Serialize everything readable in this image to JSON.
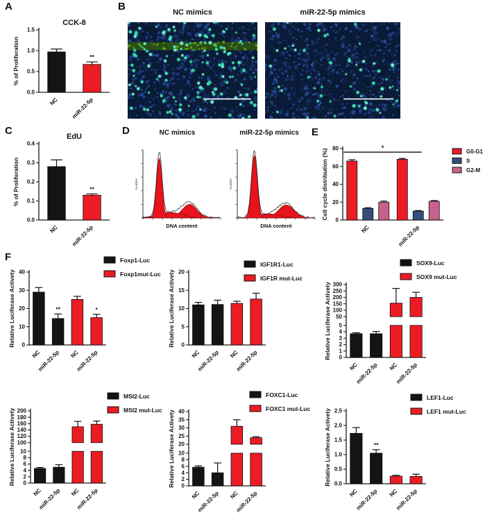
{
  "panel_labels": {
    "a": "A",
    "b": "B",
    "c": "C",
    "d": "D",
    "e": "E",
    "f": "F"
  },
  "colors": {
    "bar_black": "#141414",
    "bar_red": "#ec1c24",
    "s_blue": "#3d5f94",
    "g2m_pink": "#ef74a8",
    "micro_bg": "#0a1b38",
    "micro_band_green": "#2f5a0c",
    "micro_bright_cyan": "#43ecc0",
    "scale_bar": "#ffffff"
  },
  "panel_b": {
    "left_title": "NC mimics",
    "right_title": "miR-22-5p mimics",
    "images": [
      {
        "name": "NC mimics",
        "bright_cells": 140,
        "has_green_band": true
      },
      {
        "name": "miR-22-5p mimics",
        "bright_cells": 55,
        "has_green_band": false
      }
    ]
  },
  "panel_d": {
    "left_title": "NC mimics",
    "right_title": "miR-22-5p mimics"
  },
  "chart_data": [
    {
      "id": "cck8",
      "type": "bar",
      "title": "CCK-8",
      "ylabel": "% of Proliferation",
      "ylim": [
        0,
        1.5
      ],
      "tick_values": [
        0,
        0.5,
        1,
        1.5
      ],
      "tick_labels": [
        "0.0",
        "0.5",
        "1.0",
        "1.5"
      ],
      "bars": [
        {
          "label": "NC",
          "value": 0.97,
          "err": 0.07,
          "color": "#141414"
        },
        {
          "label": "miR-22-5p",
          "value": 0.67,
          "err": 0.06,
          "color": "#ec1c24",
          "sig": "**"
        }
      ]
    },
    {
      "id": "edu",
      "type": "bar",
      "title": "EdU",
      "ylabel": "% of Proliferation",
      "ylim": [
        0,
        0.4
      ],
      "tick_values": [
        0,
        0.1,
        0.2,
        0.3,
        0.4
      ],
      "tick_labels": [
        "0.0",
        "0.1",
        "0.2",
        "0.3",
        "0.4"
      ],
      "bars": [
        {
          "label": "NC",
          "value": 0.28,
          "err": 0.035,
          "color": "#141414"
        },
        {
          "label": "miR-22-5p",
          "value": 0.13,
          "err": 0.007,
          "color": "#ec1c24",
          "sig": "**"
        }
      ]
    },
    {
      "id": "cellcycle",
      "type": "grouped-bar",
      "ylabel": "Cell cycle distribution (%)",
      "ylim": [
        0,
        80
      ],
      "tick_values": [
        0,
        20,
        40,
        60,
        80
      ],
      "tick_labels": [
        "0",
        "20",
        "40",
        "60",
        "80"
      ],
      "categories": [
        "NC",
        "miR-22-5p"
      ],
      "series": [
        {
          "name": "G0-G1",
          "color": "#ec1c24",
          "values": [
            66,
            68
          ],
          "errors": [
            1.5,
            1.0
          ]
        },
        {
          "name": "S",
          "color": "#3d5f94",
          "hatch": true,
          "values": [
            13,
            10
          ],
          "errors": [
            0.8,
            0.6
          ]
        },
        {
          "name": "G2-M",
          "color": "#ef74a8",
          "hatch": true,
          "values": [
            20,
            21
          ],
          "errors": [
            1.2,
            0.8
          ]
        }
      ],
      "legend": [
        {
          "label": "G0-G1",
          "color": "#ec1c24"
        },
        {
          "label": "S",
          "color": "#3d5f94",
          "hatch": true
        },
        {
          "label": "G2-M",
          "color": "#ef74a8",
          "hatch": true
        }
      ],
      "sig_line": {
        "label": "*",
        "y": 76
      }
    },
    {
      "id": "foxp1",
      "type": "bar",
      "ylabel": "Relative Luciferase Activety",
      "ylim": [
        0,
        40
      ],
      "tick_values": [
        0,
        10,
        20,
        30,
        40
      ],
      "tick_labels": [
        "0",
        "10",
        "20",
        "30",
        "40"
      ],
      "legend": [
        {
          "label": "Foxp1-Luc",
          "color": "#141414"
        },
        {
          "label": "Foxp1mut-Luc",
          "color": "#ec1c24"
        }
      ],
      "bars": [
        {
          "label": "NC",
          "value": 29,
          "err": 2.5,
          "color": "#141414"
        },
        {
          "label": "miR-22-5p",
          "value": 14.5,
          "err": 2.5,
          "color": "#141414",
          "sig": "**"
        },
        {
          "label": "NC",
          "value": 25,
          "err": 1.7,
          "color": "#ec1c24"
        },
        {
          "label": "miR-22-5p",
          "value": 15,
          "err": 1.8,
          "color": "#ec1c24",
          "sig": "*"
        }
      ]
    },
    {
      "id": "igf1r",
      "type": "bar",
      "ylabel": "Relative Luciferase Activety",
      "ylim": [
        0,
        20
      ],
      "tick_values": [
        0,
        5,
        10,
        15,
        20
      ],
      "tick_labels": [
        "0",
        "5",
        "10",
        "15",
        "20"
      ],
      "legend": [
        {
          "label": "IGF1R1-Luc",
          "color": "#141414"
        },
        {
          "label": "IGF1R mut-Luc",
          "color": "#ec1c24"
        }
      ],
      "bars": [
        {
          "label": "NC",
          "value": 11,
          "err": 0.7,
          "color": "#141414"
        },
        {
          "label": "miR-22-5p",
          "value": 11.1,
          "err": 1.2,
          "color": "#141414"
        },
        {
          "label": "NC",
          "value": 11.4,
          "err": 0.6,
          "color": "#ec1c24"
        },
        {
          "label": "miR-22-5p",
          "value": 12.6,
          "err": 1.6,
          "color": "#ec1c24"
        }
      ]
    },
    {
      "id": "sox9",
      "type": "bar",
      "ylabel": "Relative Luciferase Activety",
      "segments": [
        {
          "min": 0,
          "max": 5,
          "tick_values": [
            0,
            1,
            2,
            3,
            4,
            5
          ],
          "tick_labels": [
            "0",
            "1",
            "2",
            "3",
            "4",
            "5"
          ]
        },
        {
          "min": 50,
          "max": 300,
          "tick_values": [
            50,
            100,
            150,
            200,
            250,
            300
          ],
          "tick_labels": [
            "50",
            "100",
            "150",
            "200",
            "250",
            "300"
          ]
        }
      ],
      "legend": [
        {
          "label": "SOX9-Luc",
          "color": "#141414"
        },
        {
          "label": "SOX9 mut-Luc",
          "color": "#ec1c24"
        }
      ],
      "bars": [
        {
          "label": "NC",
          "value": 3.7,
          "err": 0.15,
          "color": "#141414"
        },
        {
          "label": "miR-22-5p",
          "value": 3.7,
          "err": 0.35,
          "color": "#141414"
        },
        {
          "label": "NC",
          "value": 155,
          "err": 115,
          "color": "#ec1c24"
        },
        {
          "label": "miR-22-5p",
          "value": 200,
          "err": 40,
          "color": "#ec1c24"
        }
      ]
    },
    {
      "id": "msi2",
      "type": "bar",
      "ylabel": "Relative Luciferase Activety",
      "segments": [
        {
          "min": 0,
          "max": 10,
          "tick_values": [
            0,
            2,
            4,
            6,
            8,
            10
          ],
          "tick_labels": [
            "0",
            "2",
            "4",
            "6",
            "8",
            "10"
          ]
        },
        {
          "min": 100,
          "max": 200,
          "tick_values": [
            100,
            120,
            140,
            160,
            180,
            200
          ],
          "tick_labels": [
            "100",
            "120",
            "140",
            "160",
            "180",
            "200"
          ]
        }
      ],
      "legend": [
        {
          "label": "MSI2-Luc",
          "color": "#141414"
        },
        {
          "label": "MSI2 mut-Luc",
          "color": "#ec1c24"
        }
      ],
      "bars": [
        {
          "label": "NC",
          "value": 4.6,
          "err": 0.3,
          "color": "#141414"
        },
        {
          "label": "miR-22-5p",
          "value": 5.0,
          "err": 0.8,
          "color": "#141414"
        },
        {
          "label": "NC",
          "value": 150,
          "err": 17,
          "color": "#ec1c24"
        },
        {
          "label": "miR-22-5p",
          "value": 158,
          "err": 10,
          "color": "#ec1c24"
        }
      ]
    },
    {
      "id": "foxc1",
      "type": "bar",
      "ylabel": "Relative Luciferase Activety",
      "segments": [
        {
          "min": 0,
          "max": 10,
          "tick_values": [
            0,
            2,
            4,
            6,
            8,
            10
          ],
          "tick_labels": [
            "0",
            "2",
            "4",
            "6",
            "8",
            "10"
          ]
        },
        {
          "min": 20,
          "max": 40,
          "tick_values": [
            20,
            25,
            30,
            35,
            40
          ],
          "tick_labels": [
            "20",
            "25",
            "30",
            "35",
            "40"
          ]
        }
      ],
      "legend": [
        {
          "label": "FOXC1-Luc",
          "color": "#141414"
        },
        {
          "label": "FOXC1 mut-Luc",
          "color": "#ec1c24"
        }
      ],
      "bars": [
        {
          "label": "NC",
          "value": 5.7,
          "err": 0.4,
          "color": "#141414"
        },
        {
          "label": "miR-22-5p",
          "value": 4.0,
          "err": 3.0,
          "color": "#141414"
        },
        {
          "label": "NC",
          "value": 31,
          "err": 4,
          "color": "#ec1c24"
        },
        {
          "label": "miR-22-5p",
          "value": 24,
          "err": 0.6,
          "color": "#ec1c24"
        }
      ]
    },
    {
      "id": "lef1",
      "type": "bar",
      "ylabel": "Relative Luciferase Activety",
      "ylim": [
        0,
        2.5
      ],
      "tick_values": [
        0,
        0.5,
        1,
        1.5,
        2,
        2.5
      ],
      "tick_labels": [
        "0.0",
        "0.5",
        "1.0",
        "1.5",
        "2.0",
        "2.5"
      ],
      "legend": [
        {
          "label": "LEF1-Luc",
          "color": "#141414"
        },
        {
          "label": "LEF1 mut-Luc",
          "color": "#ec1c24"
        }
      ],
      "bars": [
        {
          "label": "NC",
          "value": 1.73,
          "err": 0.2,
          "color": "#141414"
        },
        {
          "label": "miR-22-5p",
          "value": 1.05,
          "err": 0.12,
          "color": "#141414",
          "sig": "**"
        },
        {
          "label": "NC",
          "value": 0.26,
          "err": 0.03,
          "color": "#ec1c24"
        },
        {
          "label": "miR-22-5p",
          "value": 0.25,
          "err": 0.08,
          "color": "#ec1c24"
        }
      ]
    },
    {
      "id": "flow-nc",
      "type": "flow",
      "xlabel": "DNA content",
      "ylabel": "Number",
      "peaks": [
        {
          "center": 0.21,
          "sigma": 0.035,
          "height": 0.88
        },
        {
          "center": 0.36,
          "sigma": 0.15,
          "height": 0.08
        },
        {
          "center": 0.6,
          "sigma": 0.095,
          "height": 0.2
        }
      ]
    },
    {
      "id": "flow-mir",
      "type": "flow",
      "xlabel": "DNA content",
      "ylabel": "Number",
      "peaks": [
        {
          "center": 0.22,
          "sigma": 0.037,
          "height": 0.92
        },
        {
          "center": 0.4,
          "sigma": 0.15,
          "height": 0.06
        },
        {
          "center": 0.63,
          "sigma": 0.1,
          "height": 0.19
        }
      ]
    }
  ]
}
